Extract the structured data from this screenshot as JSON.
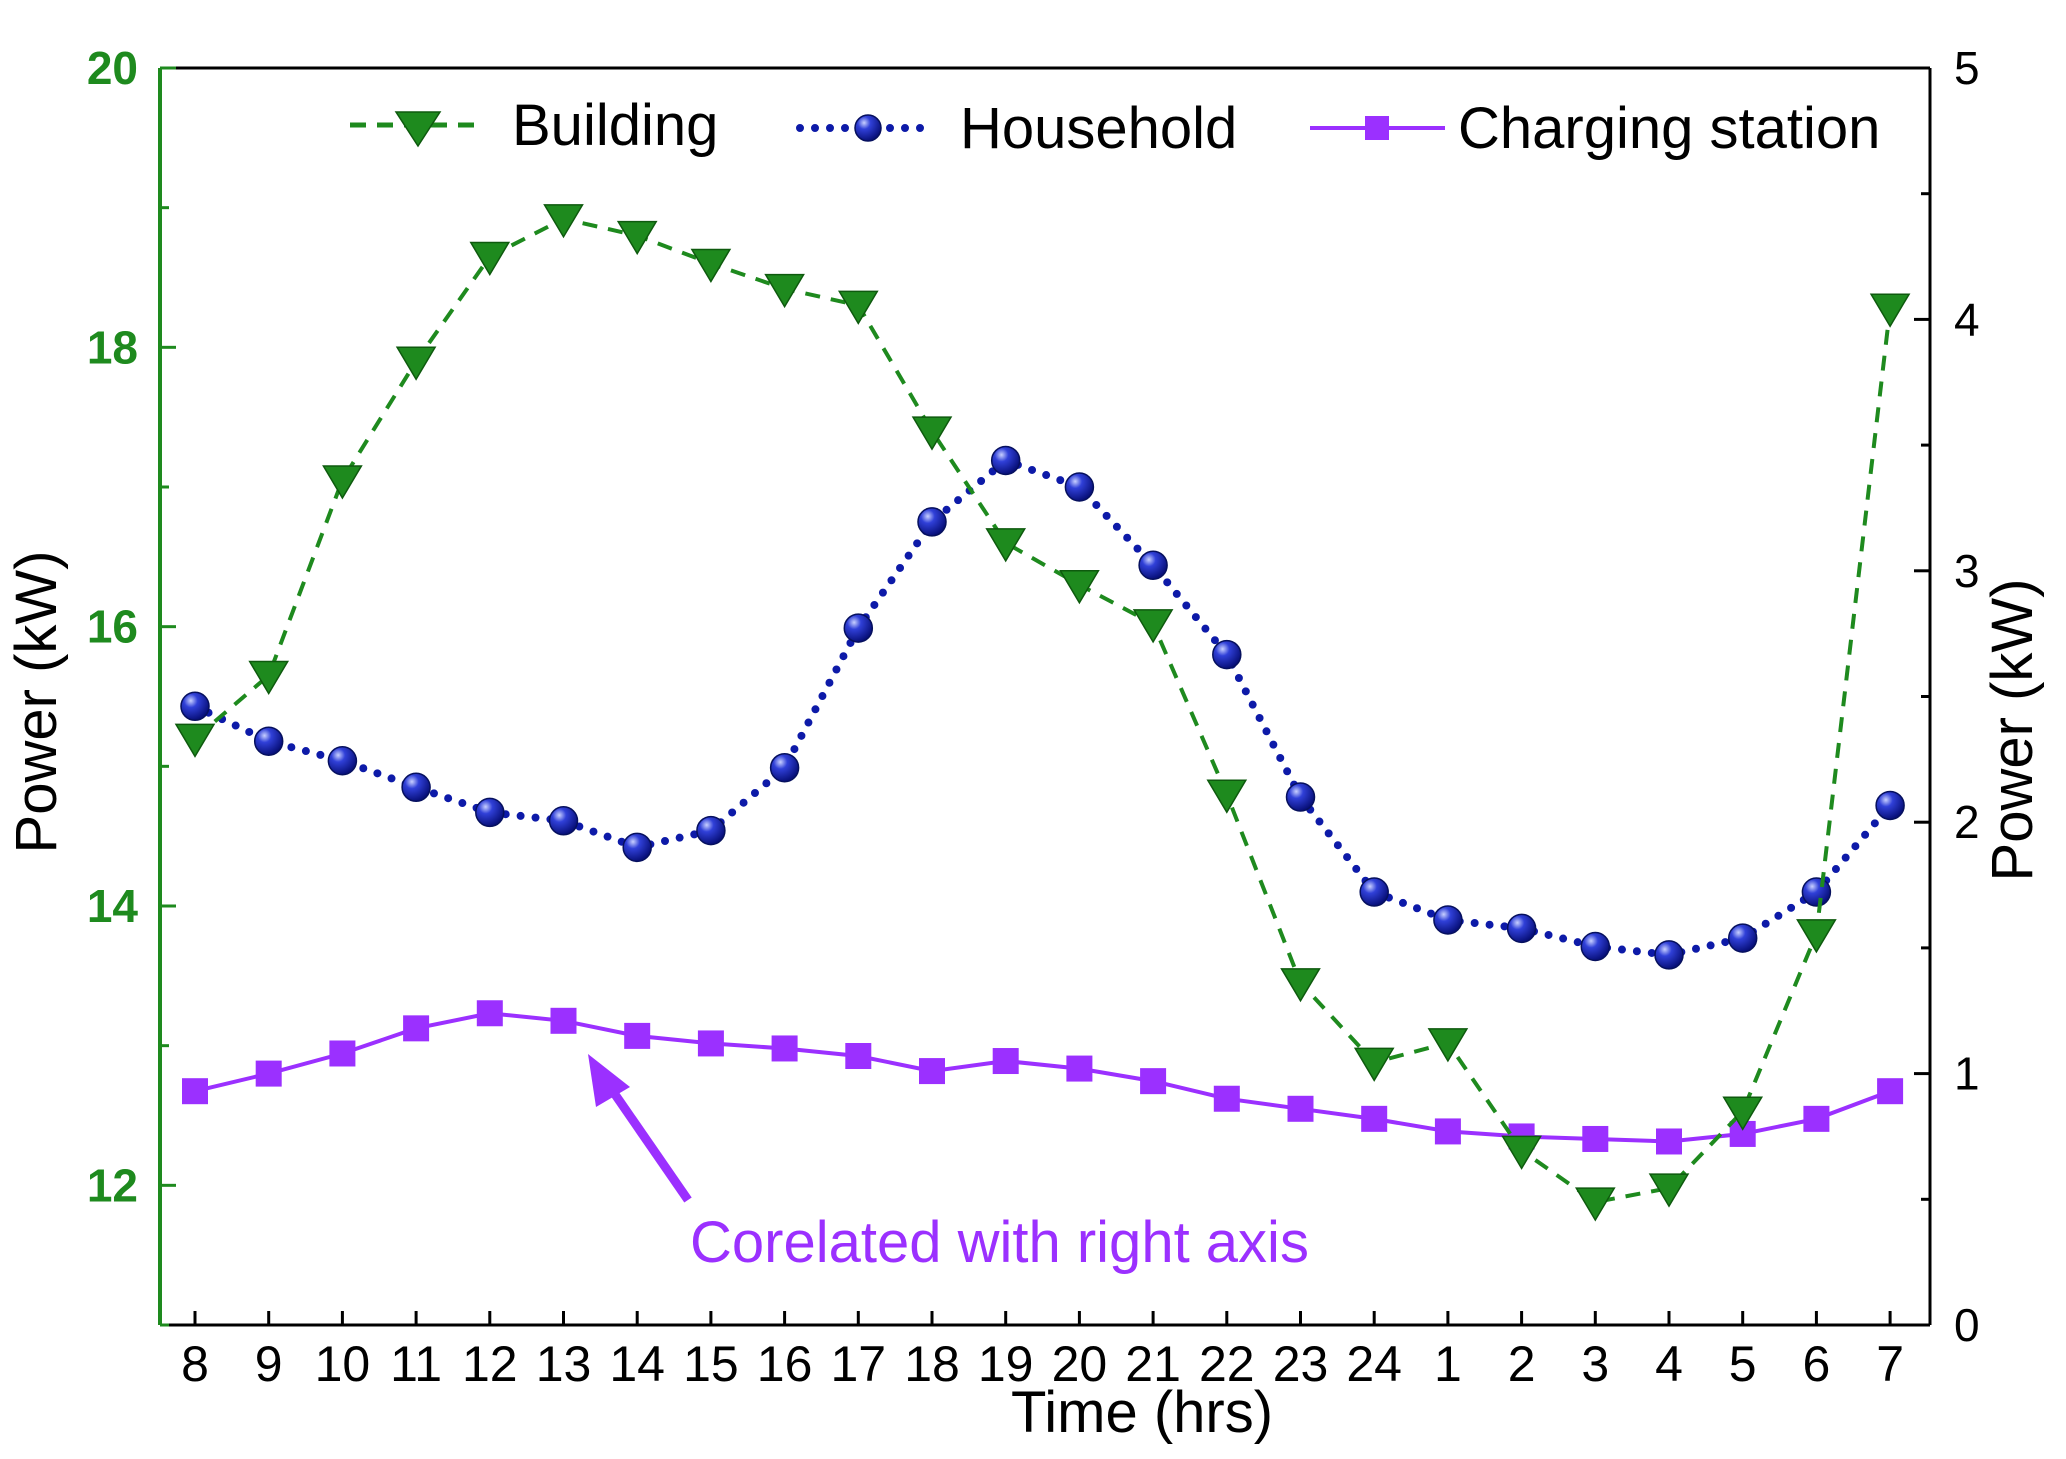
{
  "chart_data": {
    "type": "line",
    "categories": [
      "8",
      "9",
      "10",
      "11",
      "12",
      "13",
      "14",
      "15",
      "16",
      "17",
      "18",
      "19",
      "20",
      "21",
      "22",
      "23",
      "24",
      "1",
      "2",
      "3",
      "4",
      "5",
      "6",
      "7"
    ],
    "xlabel": "Time (hrs)",
    "ylabel_left": "Power (kW)",
    "ylabel_right": "Power (kW)",
    "ylim_left": [
      11,
      20
    ],
    "ylim_right": [
      0,
      5
    ],
    "yticks_left": [
      12,
      14,
      16,
      18,
      20
    ],
    "yticks_right": [
      0,
      1,
      2,
      3,
      4,
      5
    ],
    "grid": false,
    "legend_position": "top",
    "series": [
      {
        "name": "Building",
        "axis": "left",
        "marker": "triangle-down",
        "line_style": "dashed",
        "color": "#1e8a1e",
        "values": [
          15.2,
          15.65,
          17.05,
          17.9,
          18.65,
          18.92,
          18.8,
          18.6,
          18.42,
          18.3,
          17.4,
          16.6,
          16.3,
          16.02,
          14.8,
          13.45,
          12.88,
          13.02,
          12.25,
          11.88,
          11.98,
          12.53,
          13.8,
          18.28
        ]
      },
      {
        "name": "Household",
        "axis": "left",
        "marker": "circle",
        "line_style": "dotted",
        "color": "#0d1aa8",
        "values": [
          15.43,
          15.18,
          15.04,
          14.85,
          14.67,
          14.61,
          14.42,
          14.54,
          14.99,
          15.99,
          16.75,
          17.19,
          17.0,
          16.44,
          15.8,
          14.78,
          14.1,
          13.9,
          13.84,
          13.71,
          13.65,
          13.77,
          14.1,
          14.72
        ]
      },
      {
        "name": "Charging station",
        "axis": "right",
        "marker": "square",
        "line_style": "solid",
        "color": "#9b30ff",
        "values": [
          0.93,
          1.0,
          1.08,
          1.18,
          1.24,
          1.21,
          1.15,
          1.12,
          1.1,
          1.07,
          1.01,
          1.05,
          1.02,
          0.97,
          0.9,
          0.86,
          0.82,
          0.77,
          0.75,
          0.74,
          0.73,
          0.76,
          0.82,
          0.93
        ]
      }
    ],
    "annotation": {
      "text": "Corelated with right axis",
      "points_to": {
        "series": "Charging station",
        "category": "13"
      }
    },
    "colors": {
      "left_axis": "#1e8a1e",
      "building": "#1e8a1e",
      "household": "#0d1aa8",
      "charging": "#9b30ff"
    }
  }
}
